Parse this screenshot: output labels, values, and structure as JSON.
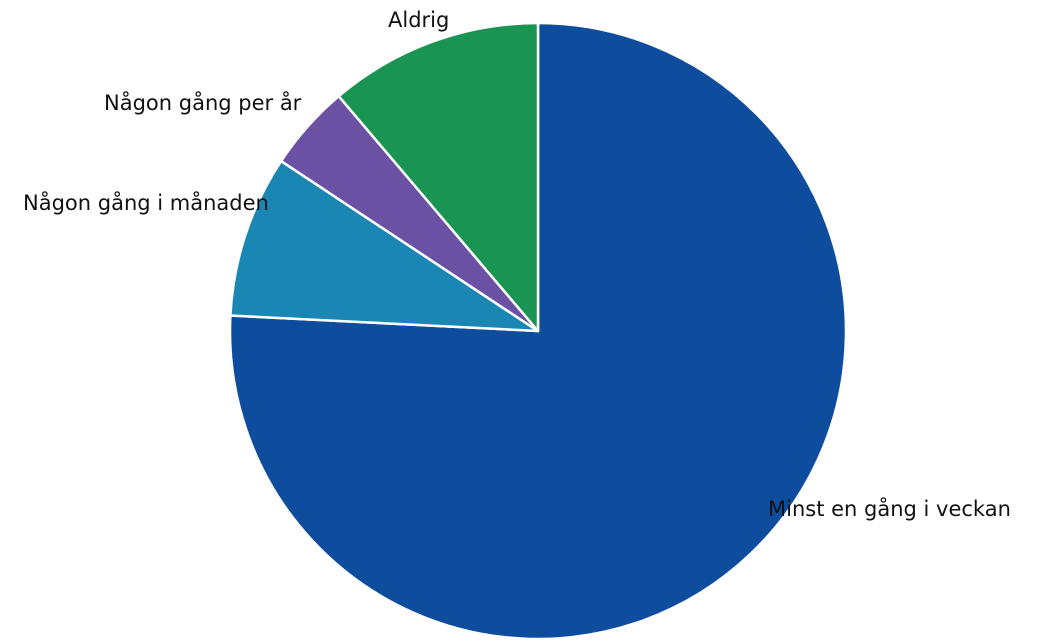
{
  "chart_data": {
    "type": "pie",
    "title": "",
    "slices": [
      {
        "label": "Minst en gång i veckan",
        "value": 75.8,
        "color": "#0E4D9E"
      },
      {
        "label": "Någon gång i månaden",
        "value": 8.5,
        "color": "#1A86B4"
      },
      {
        "label": "Någon gång per år",
        "value": 4.5,
        "color": "#6A51A3"
      },
      {
        "label": "Aldrig",
        "value": 11.2,
        "color": "#1A9452"
      }
    ],
    "start_angle": "12 o'clock",
    "direction": "clockwise",
    "legend": "none",
    "labels": "category name beside each slice"
  }
}
